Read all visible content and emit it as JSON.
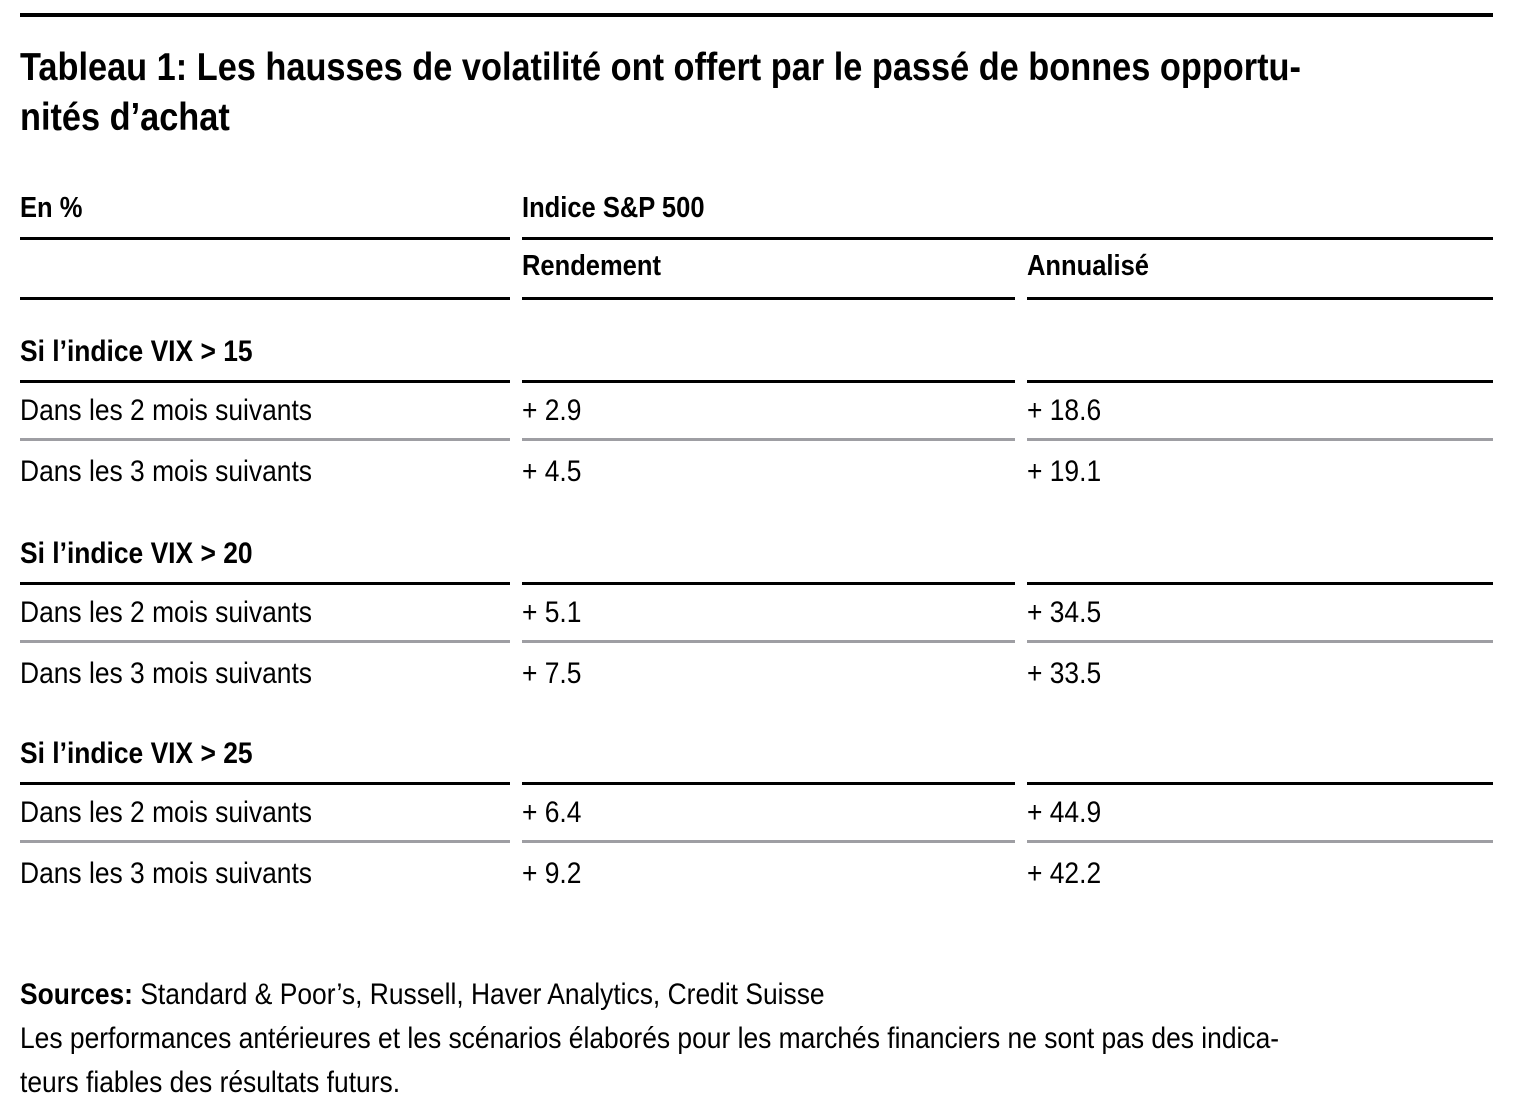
{
  "title": {
    "line1": "Tableau 1: Les hausses de volatilité ont offert par le passé de bonnes opportu-",
    "line2": "nités d’achat"
  },
  "table": {
    "unit_label": "En %",
    "group_header": "Indice S&P 500",
    "col_headers": [
      "Rendement",
      "Annualisé"
    ],
    "sections": [
      {
        "header": "Si l’indice VIX > 15",
        "rows": [
          {
            "label": "Dans les 2 mois suivants",
            "rendement": "+ 2.9",
            "annualise": "+ 18.6"
          },
          {
            "label": "Dans les 3 mois suivants",
            "rendement": "+ 4.5",
            "annualise": "+ 19.1"
          }
        ]
      },
      {
        "header": "Si l’indice VIX > 20",
        "rows": [
          {
            "label": "Dans les 2 mois suivants",
            "rendement": "+ 5.1",
            "annualise": "+ 34.5"
          },
          {
            "label": "Dans les 3 mois suivants",
            "rendement": "+ 7.5",
            "annualise": "+ 33.5"
          }
        ]
      },
      {
        "header": "Si l’indice VIX > 25",
        "rows": [
          {
            "label": "Dans les 2 mois suivants",
            "rendement": "+ 6.4",
            "annualise": "+ 44.9"
          },
          {
            "label": "Dans les 3 mois suivants",
            "rendement": "+ 9.2",
            "annualise": "+ 42.2"
          }
        ]
      }
    ]
  },
  "footer": {
    "sources_label": "Sources:",
    "sources_text": "Standard & Poor’s, Russell, Haver Analytics, Credit Suisse",
    "disclaimer_line1": "Les performances antérieures et les scénarios élaborés pour les marchés financiers ne sont pas des indica-",
    "disclaimer_line2": "teurs fiables des résultats futurs."
  },
  "colors": {
    "background": "#ffffff",
    "text": "#000000",
    "rule_black": "#000000",
    "rule_gray": "#9e9ea3"
  }
}
